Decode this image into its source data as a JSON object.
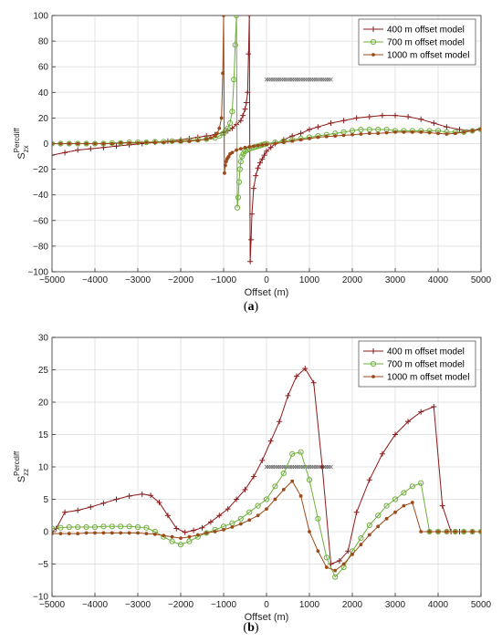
{
  "captions": [
    {
      "open": "(",
      "letter": "a",
      "close": ")"
    },
    {
      "open": "(",
      "letter": "b",
      "close": ")"
    }
  ],
  "chart_data": [
    {
      "type": "line",
      "xlabel": "Offset (m)",
      "ylabel_base": "S",
      "ylabel_sub": "zx",
      "ylabel_sup": "Percdiff",
      "xlim": [
        -5000,
        5000
      ],
      "ylim": [
        -100,
        100
      ],
      "xticks": [
        -5000,
        -4000,
        -3000,
        -2000,
        -1000,
        0,
        1000,
        2000,
        3000,
        4000,
        5000
      ],
      "yticks": [
        -100,
        -80,
        -60,
        -40,
        -20,
        0,
        20,
        40,
        60,
        80,
        100
      ],
      "grid": true,
      "legend_position": "top-right",
      "colors": {
        "400": "#8b1a1a",
        "700": "#6fae3c",
        "1000": "#9b4a1a"
      },
      "series": [
        {
          "name": "400 m offset model",
          "marker": "plus",
          "color": "#8b1a1a",
          "x": [
            -5000,
            -4700,
            -4400,
            -4100,
            -3800,
            -3500,
            -3200,
            -2900,
            -2600,
            -2300,
            -2000,
            -1800,
            -1600,
            -1400,
            -1200,
            -1000,
            -900,
            -800,
            -700,
            -600,
            -550,
            -500,
            -470,
            -440,
            -420,
            -400,
            -380,
            -360,
            -340,
            -300,
            -250,
            -200,
            -150,
            -100,
            -50,
            0,
            100,
            200,
            400,
            600,
            800,
            1000,
            1200,
            1500,
            1800,
            2100,
            2400,
            2700,
            3000,
            3300,
            3600,
            3900,
            4200,
            4500,
            4800,
            5000
          ],
          "y": [
            -9,
            -7,
            -5,
            -4,
            -3,
            -2,
            -1,
            0,
            1,
            2,
            3,
            4,
            5,
            6,
            7,
            9,
            10,
            12,
            15,
            18,
            22,
            27,
            32,
            40,
            70,
            100,
            -92,
            -75,
            -55,
            -35,
            -25,
            -19,
            -15,
            -12,
            -9,
            -6,
            -3,
            0,
            3,
            6,
            8,
            11,
            13,
            16,
            18,
            20,
            21,
            22,
            22,
            21,
            19,
            16,
            13,
            11,
            10,
            12
          ]
        },
        {
          "name": "700 m offset model",
          "marker": "circle",
          "color": "#6fae3c",
          "x": [
            -5000,
            -4800,
            -4600,
            -4400,
            -4200,
            -4000,
            -3800,
            -3600,
            -3400,
            -3200,
            -3000,
            -2800,
            -2600,
            -2400,
            -2200,
            -2000,
            -1800,
            -1600,
            -1400,
            -1200,
            -1100,
            -1000,
            -950,
            -900,
            -850,
            -800,
            -760,
            -730,
            -700,
            -680,
            -660,
            -640,
            -620,
            -600,
            -570,
            -540,
            -500,
            -450,
            -400,
            -350,
            -300,
            -250,
            -200,
            -150,
            -100,
            -50,
            0,
            200,
            400,
            600,
            800,
            1000,
            1200,
            1400,
            1600,
            1800,
            2000,
            2200,
            2400,
            2600,
            2800,
            3000,
            3200,
            3400,
            3600,
            3800,
            4000,
            4200,
            4400,
            4600,
            4800,
            5000
          ],
          "y": [
            0,
            0,
            0,
            0,
            0,
            0,
            0,
            0.5,
            0.5,
            1,
            1,
            1,
            1.5,
            1.5,
            2,
            2,
            2.5,
            3,
            3.5,
            4.5,
            6,
            8,
            10,
            12,
            16,
            25,
            50,
            77,
            100,
            -50,
            -42,
            -30,
            -20,
            -14,
            -10,
            -8,
            -6,
            -5,
            -4,
            -3.5,
            -3,
            -2.5,
            -2,
            -1.5,
            -1,
            -0.5,
            0,
            1,
            2,
            3,
            4,
            5,
            6,
            7,
            8,
            9,
            10,
            11,
            11,
            11,
            11,
            10,
            10,
            10,
            10,
            10,
            10,
            9,
            9,
            9,
            10,
            11
          ]
        },
        {
          "name": "1000 m offset model",
          "marker": "dot",
          "color": "#9b4a1a",
          "x": [
            -5000,
            -4800,
            -4600,
            -4400,
            -4200,
            -4000,
            -3800,
            -3600,
            -3400,
            -3200,
            -3000,
            -2800,
            -2600,
            -2400,
            -2200,
            -2000,
            -1800,
            -1600,
            -1400,
            -1300,
            -1200,
            -1150,
            -1100,
            -1050,
            -1020,
            -1000,
            -980,
            -960,
            -940,
            -920,
            -900,
            -880,
            -850,
            -800,
            -700,
            -600,
            -500,
            -400,
            -300,
            -200,
            -100,
            0,
            200,
            400,
            600,
            800,
            1000,
            1200,
            1400,
            1600,
            1800,
            2000,
            2200,
            2400,
            2600,
            2800,
            3000,
            3200,
            3400,
            3600,
            3800,
            4000,
            4200,
            4400,
            4600,
            4800,
            5000
          ],
          "y": [
            0,
            0,
            0,
            0,
            0,
            0,
            0,
            0,
            0.5,
            0.5,
            0.5,
            1,
            1,
            1,
            1.5,
            1.5,
            2,
            2.5,
            3.5,
            4.5,
            6,
            8,
            12,
            20,
            55,
            100,
            -23,
            -17,
            -14,
            -12,
            -11,
            -10,
            -8,
            -7,
            -5,
            -4,
            -3,
            -2.5,
            -2,
            -1.5,
            -1,
            -0.5,
            0,
            1,
            2,
            3,
            4,
            5,
            5.5,
            6,
            6.5,
            7,
            7.5,
            8,
            8,
            8.5,
            9,
            9,
            9,
            9,
            8.5,
            8,
            7.5,
            8,
            9,
            10,
            11
          ]
        }
      ],
      "annotation": {
        "x_start": 0,
        "x_end": 1500,
        "y": 50,
        "marker": "x",
        "color": "#666666"
      }
    },
    {
      "type": "line",
      "xlabel": "Offset (m)",
      "ylabel_base": "S",
      "ylabel_sub": "zz",
      "ylabel_sup": "Percdiff",
      "xlim": [
        -5000,
        5000
      ],
      "ylim": [
        -10,
        30
      ],
      "xticks": [
        -5000,
        -4000,
        -3000,
        -2000,
        -1000,
        0,
        1000,
        2000,
        3000,
        4000,
        5000
      ],
      "yticks": [
        -10,
        -5,
        0,
        5,
        10,
        15,
        20,
        25,
        30
      ],
      "grid": true,
      "legend_position": "top-right",
      "series": [
        {
          "name": "400 m offset model",
          "marker": "plus",
          "color": "#8b1a1a",
          "x": [
            -5000,
            -4900,
            -4700,
            -4400,
            -4100,
            -3800,
            -3500,
            -3200,
            -2900,
            -2700,
            -2500,
            -2300,
            -2100,
            -1900,
            -1700,
            -1500,
            -1300,
            -1100,
            -900,
            -700,
            -500,
            -300,
            -100,
            100,
            300,
            500,
            700,
            900,
            1100,
            1300,
            1500,
            1700,
            1900,
            2100,
            2400,
            2700,
            3000,
            3300,
            3600,
            3900,
            4100,
            4300,
            4500,
            4800,
            5000
          ],
          "y": [
            0,
            0.5,
            3,
            3.3,
            3.8,
            4.4,
            5,
            5.5,
            5.8,
            5.6,
            4.5,
            2.5,
            0.5,
            -0.1,
            0.2,
            0.6,
            1.5,
            2.5,
            3.5,
            5,
            6.5,
            8.5,
            11,
            14,
            17,
            21,
            24,
            25.2,
            23,
            10,
            -5,
            -4.5,
            -3,
            3,
            8,
            12,
            15,
            17,
            18.5,
            19.3,
            4,
            0,
            0,
            0,
            0
          ]
        },
        {
          "name": "700 m offset model",
          "marker": "circle",
          "color": "#6fae3c",
          "x": [
            -5000,
            -4800,
            -4600,
            -4400,
            -4200,
            -4000,
            -3800,
            -3600,
            -3400,
            -3200,
            -3000,
            -2800,
            -2600,
            -2400,
            -2200,
            -2000,
            -1800,
            -1600,
            -1400,
            -1200,
            -1000,
            -800,
            -600,
            -400,
            -200,
            0,
            200,
            400,
            600,
            800,
            1000,
            1200,
            1400,
            1600,
            1800,
            2000,
            2200,
            2400,
            2600,
            2800,
            3000,
            3200,
            3400,
            3600,
            3800,
            4000,
            4200,
            4400,
            4600,
            4800,
            5000
          ],
          "y": [
            0.5,
            0.6,
            0.7,
            0.7,
            0.7,
            0.7,
            0.8,
            0.8,
            0.8,
            0.8,
            0.7,
            0.6,
            0,
            -0.8,
            -1.5,
            -2,
            -1.5,
            -0.8,
            -0.2,
            0.3,
            0.8,
            1.3,
            2,
            3,
            4,
            5,
            7,
            9,
            12,
            12.3,
            8,
            2,
            -4,
            -7,
            -5.5,
            -3,
            -1,
            1,
            2.5,
            4,
            5,
            6,
            7,
            7.5,
            0,
            0,
            0,
            0,
            0,
            0,
            0
          ]
        },
        {
          "name": "1000 m offset model",
          "marker": "dot",
          "color": "#9b4a1a",
          "x": [
            -5000,
            -4800,
            -4600,
            -4400,
            -4200,
            -4000,
            -3800,
            -3600,
            -3400,
            -3200,
            -3000,
            -2800,
            -2600,
            -2400,
            -2200,
            -2000,
            -1800,
            -1600,
            -1400,
            -1200,
            -1000,
            -800,
            -600,
            -400,
            -200,
            0,
            200,
            400,
            600,
            800,
            1000,
            1200,
            1400,
            1600,
            1800,
            2000,
            2200,
            2400,
            2600,
            2800,
            3000,
            3200,
            3400,
            3600,
            3800,
            4000,
            4200,
            4400,
            4600,
            4800,
            5000
          ],
          "y": [
            -0.3,
            -0.3,
            -0.3,
            -0.3,
            -0.2,
            -0.2,
            -0.2,
            -0.2,
            -0.2,
            -0.2,
            -0.2,
            -0.3,
            -0.4,
            -0.6,
            -0.8,
            -1,
            -0.8,
            -0.5,
            -0.2,
            0,
            0.3,
            0.7,
            1.2,
            1.8,
            2.5,
            3.5,
            5,
            6.5,
            7.8,
            5.5,
            0,
            -3,
            -5.5,
            -6,
            -5,
            -3.5,
            -2,
            -0.5,
            0.8,
            2,
            3,
            4,
            4.5,
            0,
            0,
            0,
            0,
            0,
            0,
            0,
            0
          ]
        }
      ],
      "annotation": {
        "x_start": 0,
        "x_end": 1500,
        "y": 10,
        "marker": "x",
        "color": "#666666"
      }
    }
  ]
}
